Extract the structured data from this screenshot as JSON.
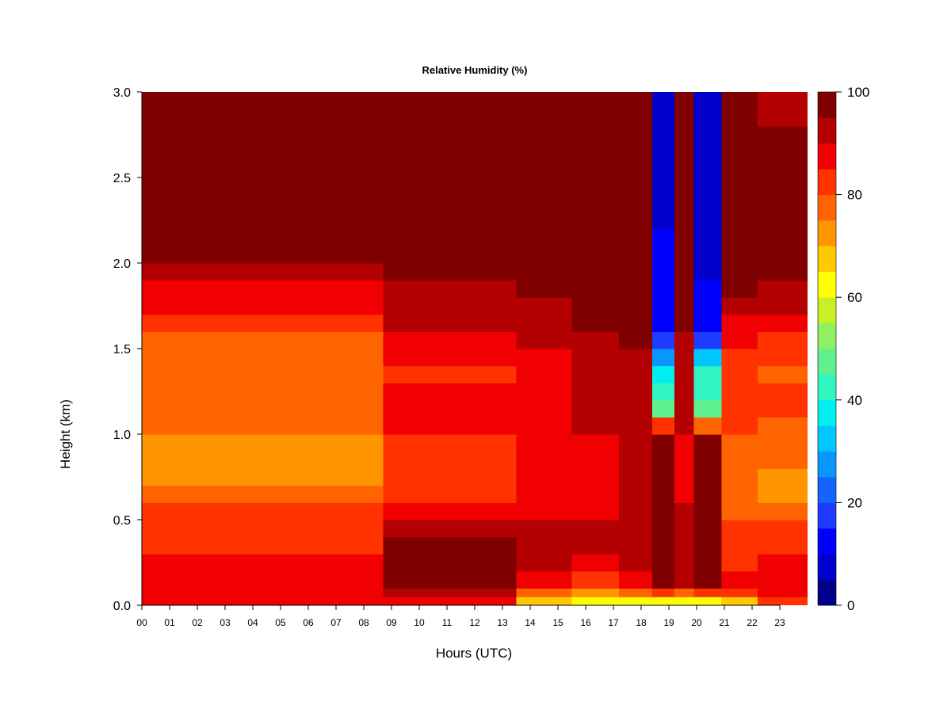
{
  "chart_data": {
    "type": "heatmap",
    "title": "Relative Humidity (%)",
    "xlabel": "Hours (UTC)",
    "ylabel": "Height (km)",
    "xlim": [
      0,
      24
    ],
    "ylim": [
      0,
      3
    ],
    "x_ticks": [
      "00",
      "01",
      "02",
      "03",
      "04",
      "05",
      "06",
      "07",
      "08",
      "09",
      "10",
      "11",
      "12",
      "13",
      "14",
      "15",
      "16",
      "17",
      "18",
      "19",
      "20",
      "21",
      "22",
      "23"
    ],
    "y_ticks": [
      "0.0",
      "0.5",
      "1.0",
      "1.5",
      "2.0",
      "2.5",
      "3.0"
    ],
    "colorbar": {
      "range": [
        0,
        100
      ],
      "step": 5,
      "tick_labels": [
        "0",
        "20",
        "40",
        "60",
        "80",
        "100"
      ],
      "colors": [
        "#00008B",
        "#0000CD",
        "#0000FF",
        "#1E3CFF",
        "#1464FF",
        "#0A96FF",
        "#00C8FF",
        "#00F0F0",
        "#30F5C0",
        "#60F090",
        "#90F060",
        "#C8F028",
        "#FFFF00",
        "#FFC800",
        "#FF9600",
        "#FF6400",
        "#FF3200",
        "#F00000",
        "#B40000",
        "#800000"
      ]
    },
    "height_bands_km": [
      0.0,
      0.05,
      0.1,
      0.2,
      0.3,
      0.4,
      0.5,
      0.6,
      0.7,
      0.8,
      0.9,
      1.0,
      1.1,
      1.2,
      1.3,
      1.4,
      1.5,
      1.6,
      1.7,
      1.8,
      1.9,
      2.0,
      2.2,
      2.5,
      2.8,
      3.0
    ],
    "profiles": [
      {
        "from_hour": 0.0,
        "to_hour": 8.7,
        "rh": [
          86,
          88,
          88,
          86,
          84,
          82,
          80,
          75,
          72,
          72,
          73,
          75,
          78,
          77,
          75,
          76,
          79,
          82,
          86,
          89,
          93,
          98,
          99,
          99,
          96
        ]
      },
      {
        "from_hour": 8.7,
        "to_hour": 13.5,
        "rh": [
          85,
          92,
          97,
          98,
          96,
          90,
          86,
          84,
          82,
          82,
          83,
          85,
          86,
          85,
          84,
          86,
          88,
          90,
          92,
          94,
          97,
          99,
          99,
          99,
          97
        ]
      },
      {
        "from_hour": 13.5,
        "to_hour": 15.5,
        "rh": [
          65,
          78,
          86,
          92,
          92,
          90,
          88,
          86,
          85,
          85,
          86,
          88,
          89,
          88,
          87,
          88,
          90,
          92,
          94,
          96,
          98,
          99,
          99,
          99,
          98
        ]
      },
      {
        "from_hour": 15.5,
        "to_hour": 17.2,
        "rh": [
          60,
          72,
          82,
          88,
          90,
          90,
          89,
          88,
          88,
          88,
          89,
          90,
          91,
          90,
          90,
          91,
          93,
          95,
          97,
          98,
          99,
          99,
          99,
          99,
          98
        ]
      },
      {
        "from_hour": 17.2,
        "to_hour": 18.4,
        "rh": [
          60,
          75,
          85,
          90,
          92,
          93,
          92,
          92,
          92,
          92,
          92,
          94,
          94,
          93,
          92,
          93,
          95,
          96,
          97,
          98,
          99,
          99,
          99,
          99,
          98
        ]
      },
      {
        "from_hour": 18.4,
        "to_hour": 19.2,
        "rh": [
          62,
          80,
          95,
          98,
          98,
          97,
          96,
          96,
          96,
          95,
          95,
          80,
          45,
          40,
          35,
          25,
          15,
          12,
          10,
          10,
          10,
          10,
          8,
          8,
          8
        ]
      },
      {
        "from_hour": 19.2,
        "to_hour": 19.9,
        "rh": [
          62,
          78,
          90,
          94,
          94,
          92,
          90,
          88,
          88,
          88,
          89,
          90,
          91,
          90,
          90,
          91,
          94,
          96,
          97,
          98,
          99,
          99,
          99,
          99,
          98
        ]
      },
      {
        "from_hour": 19.9,
        "to_hour": 20.9,
        "rh": [
          60,
          82,
          97,
          99,
          99,
          99,
          99,
          99,
          99,
          99,
          99,
          75,
          48,
          44,
          40,
          32,
          18,
          12,
          10,
          10,
          8,
          8,
          8,
          8,
          8
        ]
      },
      {
        "from_hour": 20.9,
        "to_hour": 22.2,
        "rh": [
          68,
          80,
          86,
          84,
          82,
          80,
          78,
          76,
          76,
          77,
          78,
          80,
          82,
          82,
          81,
          83,
          86,
          89,
          92,
          95,
          98,
          99,
          99,
          99,
          97
        ]
      },
      {
        "from_hour": 22.2,
        "to_hour": 24.0,
        "rh": [
          80,
          86,
          88,
          86,
          84,
          80,
          76,
          74,
          74,
          75,
          76,
          78,
          80,
          80,
          79,
          81,
          84,
          87,
          90,
          93,
          97,
          99,
          99,
          99,
          94
        ]
      }
    ]
  }
}
